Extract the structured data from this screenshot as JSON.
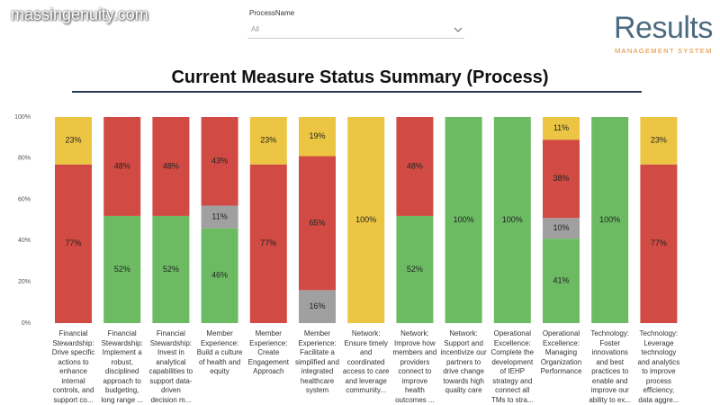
{
  "header": {
    "watermark": "massingenuity.com",
    "filter_label": "ProcessName",
    "filter_value": "All",
    "logo_title": "Results",
    "logo_subtitle": "MANAGEMENT SYSTEM"
  },
  "chart_data": {
    "type": "stacked_bar_100",
    "title": "Current Measure Status Summary (Process)",
    "categories": [
      "Financial Stewardship: Drive specific actions to enhance internal controls, and support co...",
      "Financial Stewardship: Implement a robust, disciplined approach to budgeting, long range ...",
      "Financial Stewardship: Invest in analytical capabilities to support data-driven decision m...",
      "Member Experience: Build a culture of health and equity",
      "Member Experience: Create Engagement Approach",
      "Member Experience: Facilitate a simplified and integrated healthcare system",
      "Network: Ensure timely and coordinated access to care and leverage community...",
      "Network: Improve how members and providers connect to improve health outcomes ...",
      "Network: Support and incentivize our partners to drive change towards high quality care",
      "Operational Excellence: Complete the development of IEHP strategy and connect all TMs to stra...",
      "Operational Excellence: Managing Organization Performance",
      "Technology: Foster innovations and best practices to enable and improve our ability to ex...",
      "Technology: Leverage technology and analytics to improve process efficiency, data aggre..."
    ],
    "series": [
      {
        "color": "#6cbb63",
        "values": [
          null,
          52,
          52,
          46,
          null,
          null,
          null,
          52,
          100,
          100,
          41,
          100,
          null
        ],
        "value_labels": [
          null,
          "52%",
          "52%",
          "46%",
          null,
          null,
          null,
          "52%",
          "100%",
          "100%",
          "41%",
          "100%",
          null
        ]
      },
      {
        "color": "#a0a0a0",
        "values": [
          null,
          null,
          null,
          11,
          null,
          16,
          null,
          null,
          null,
          null,
          10,
          null,
          null
        ],
        "value_labels": [
          null,
          null,
          null,
          "11%",
          null,
          "16%",
          null,
          null,
          null,
          null,
          "10%",
          null,
          null
        ]
      },
      {
        "color": "#d14b44",
        "values": [
          77,
          48,
          48,
          43,
          77,
          65,
          null,
          48,
          null,
          null,
          38,
          null,
          77
        ],
        "value_labels": [
          "77%",
          "48%",
          "48%",
          "43%",
          "77%",
          "65%",
          null,
          "48%",
          null,
          null,
          "38%",
          null,
          "77%"
        ]
      },
      {
        "color": "#ecc642",
        "values": [
          23,
          null,
          null,
          null,
          23,
          19,
          100,
          null,
          null,
          null,
          11,
          null,
          23
        ],
        "value_labels": [
          "23%",
          null,
          null,
          null,
          "23%",
          "19%",
          "100%",
          null,
          null,
          null,
          "11%",
          null,
          "23%"
        ]
      }
    ],
    "ylim": [
      0,
      100
    ],
    "yticks": [
      {
        "value": 0,
        "label": "0%"
      },
      {
        "value": 20,
        "label": "20%"
      },
      {
        "value": 40,
        "label": "40%"
      },
      {
        "value": 60,
        "label": "60%"
      },
      {
        "value": 80,
        "label": "80%"
      },
      {
        "value": 100,
        "label": "100%"
      }
    ]
  }
}
